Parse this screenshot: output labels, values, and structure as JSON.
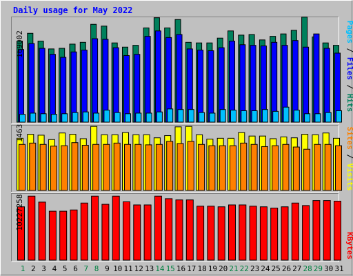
{
  "colors": {
    "background": "#c0c0c0",
    "title": "#0000ff",
    "hits": "#00805c",
    "files": "#0000ff",
    "pages": "#00c0ff",
    "visits": "#ffff00",
    "sites": "#ff8000",
    "kbytes": "#ff0000",
    "weekday_label": "#008040",
    "weekend_label": "#008040"
  },
  "title": "Daily usage for May 2022",
  "chart_data": [
    {
      "type": "bar",
      "name": "hits-files-pages",
      "ymax_label": "169002",
      "ymax": 169002,
      "legend": [
        "Pages",
        "Files",
        "Hits"
      ],
      "categories": [
        "1",
        "2",
        "3",
        "4",
        "5",
        "6",
        "7",
        "8",
        "9",
        "10",
        "11",
        "12",
        "13",
        "14",
        "15",
        "16",
        "17",
        "18",
        "19",
        "20",
        "21",
        "22",
        "23",
        "24",
        "25",
        "26",
        "27",
        "28",
        "29",
        "30",
        "31"
      ],
      "series": [
        {
          "name": "Hits",
          "values": [
            135000,
            148000,
            135000,
            122000,
            123000,
            130000,
            133000,
            163000,
            160000,
            132000,
            125000,
            128000,
            157000,
            174000,
            157000,
            171000,
            133000,
            132000,
            132000,
            140000,
            152000,
            145000,
            146000,
            137000,
            143000,
            147000,
            153000,
            175000,
            142000,
            132000,
            128000
          ]
        },
        {
          "name": "Files",
          "values": [
            121000,
            131000,
            123000,
            113000,
            108000,
            117000,
            120000,
            139000,
            138000,
            124000,
            111000,
            113000,
            143000,
            152000,
            141000,
            146000,
            122000,
            120000,
            119000,
            124000,
            135000,
            129000,
            128000,
            127000,
            133000,
            128000,
            136000,
            125000,
            147000,
            123000,
            115000
          ]
        },
        {
          "name": "Pages",
          "values": [
            13000,
            15000,
            14000,
            13000,
            14000,
            16000,
            17000,
            15000,
            20000,
            16000,
            14000,
            15000,
            15000,
            17000,
            22000,
            21000,
            21000,
            16000,
            15000,
            21000,
            20000,
            19000,
            19000,
            21000,
            18000,
            25000,
            20000,
            14000,
            14000,
            16000,
            19000
          ]
        }
      ]
    },
    {
      "type": "bar",
      "name": "visits-sites",
      "ymax_label": "1463",
      "ymax": 1463,
      "legend": [
        "Sites",
        "Visits"
      ],
      "categories": [
        "1",
        "2",
        "3",
        "4",
        "5",
        "6",
        "7",
        "8",
        "9",
        "10",
        "11",
        "12",
        "13",
        "14",
        "15",
        "16",
        "17",
        "18",
        "19",
        "20",
        "21",
        "22",
        "23",
        "24",
        "25",
        "26",
        "27",
        "28",
        "29",
        "30",
        "31"
      ],
      "series": [
        {
          "name": "Visits",
          "values": [
            1190,
            1280,
            1260,
            1160,
            1310,
            1280,
            1180,
            1460,
            1270,
            1270,
            1320,
            1270,
            1270,
            1200,
            1250,
            1450,
            1460,
            1270,
            1170,
            1190,
            1190,
            1320,
            1240,
            1240,
            1180,
            1220,
            1200,
            1280,
            1270,
            1310,
            1190
          ]
        },
        {
          "name": "Sites",
          "values": [
            1050,
            1080,
            1050,
            1010,
            1020,
            1090,
            1030,
            1050,
            1050,
            1080,
            1050,
            1050,
            1040,
            1050,
            1120,
            1070,
            1120,
            1050,
            1020,
            1020,
            1020,
            1080,
            1050,
            1000,
            1020,
            1050,
            990,
            940,
            1050,
            1050,
            1020
          ]
        }
      ]
    },
    {
      "type": "bar",
      "name": "kbytes",
      "ymax_label": "10227258",
      "ymax": 10227258,
      "legend": [
        "KBytes"
      ],
      "categories": [
        "1",
        "2",
        "3",
        "4",
        "5",
        "6",
        "7",
        "8",
        "9",
        "10",
        "11",
        "12",
        "13",
        "14",
        "15",
        "16",
        "17",
        "18",
        "19",
        "20",
        "21",
        "22",
        "23",
        "24",
        "25",
        "26",
        "27",
        "28",
        "29",
        "30",
        "31"
      ],
      "series": [
        {
          "name": "KBytes",
          "values": [
            8500000,
            10200000,
            9250000,
            7800000,
            7800000,
            8000000,
            9100000,
            10200000,
            8900000,
            10200000,
            9300000,
            8800000,
            8800000,
            10200000,
            9800000,
            9600000,
            9600000,
            8600000,
            8600000,
            8500000,
            8800000,
            8800000,
            8600000,
            8500000,
            8300000,
            8500000,
            9100000,
            8700000,
            9500000,
            9500000,
            9400000
          ]
        }
      ]
    }
  ],
  "x_labels": [
    {
      "label": "1",
      "weekend": true
    },
    {
      "label": "2",
      "weekend": false
    },
    {
      "label": "3",
      "weekend": false
    },
    {
      "label": "4",
      "weekend": false
    },
    {
      "label": "5",
      "weekend": false
    },
    {
      "label": "6",
      "weekend": false
    },
    {
      "label": "7",
      "weekend": true
    },
    {
      "label": "8",
      "weekend": true
    },
    {
      "label": "9",
      "weekend": false
    },
    {
      "label": "10",
      "weekend": false
    },
    {
      "label": "11",
      "weekend": false
    },
    {
      "label": "12",
      "weekend": false
    },
    {
      "label": "13",
      "weekend": false
    },
    {
      "label": "14",
      "weekend": true
    },
    {
      "label": "15",
      "weekend": true
    },
    {
      "label": "16",
      "weekend": false
    },
    {
      "label": "17",
      "weekend": false
    },
    {
      "label": "18",
      "weekend": false
    },
    {
      "label": "19",
      "weekend": false
    },
    {
      "label": "20",
      "weekend": false
    },
    {
      "label": "21",
      "weekend": true
    },
    {
      "label": "22",
      "weekend": true
    },
    {
      "label": "23",
      "weekend": false
    },
    {
      "label": "24",
      "weekend": false
    },
    {
      "label": "25",
      "weekend": false
    },
    {
      "label": "26",
      "weekend": false
    },
    {
      "label": "27",
      "weekend": false
    },
    {
      "label": "28",
      "weekend": true
    },
    {
      "label": "29",
      "weekend": true
    },
    {
      "label": "30",
      "weekend": false
    },
    {
      "label": "31",
      "weekend": false
    }
  ]
}
